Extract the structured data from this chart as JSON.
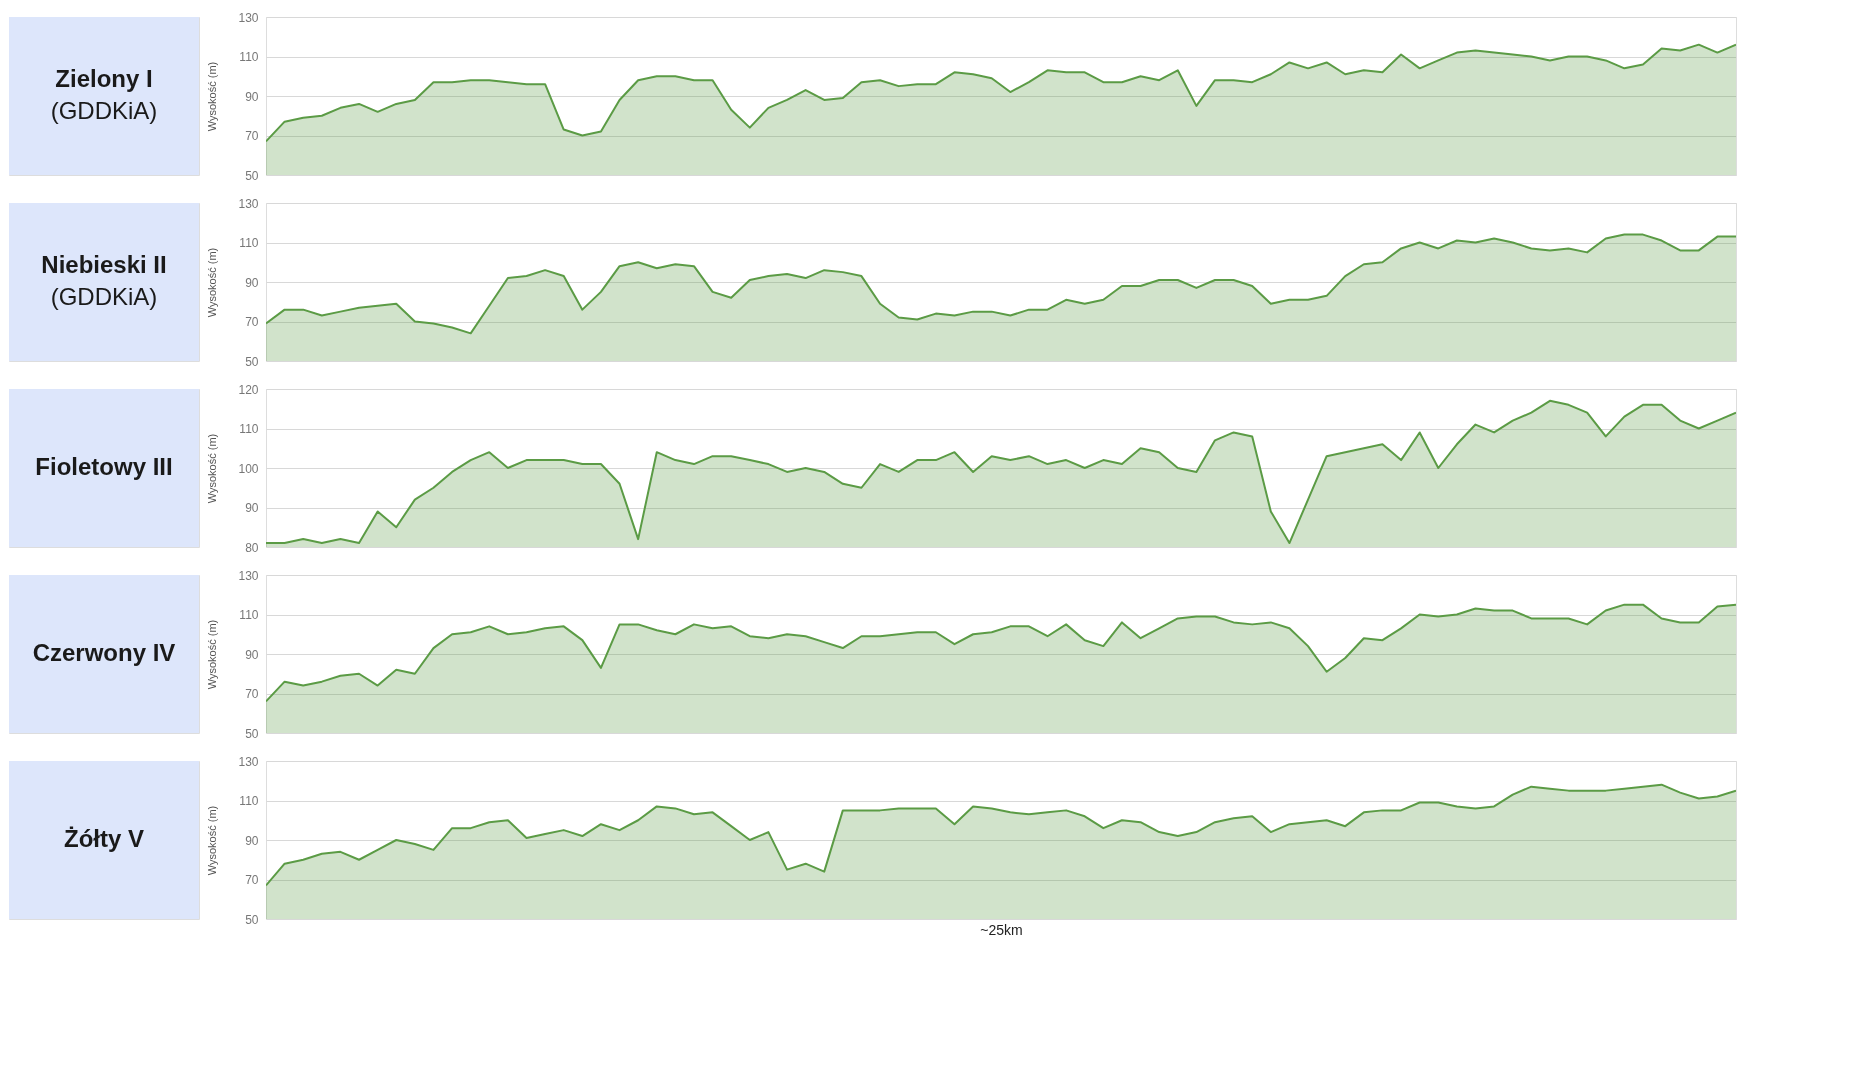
{
  "chart_data": [
    {
      "type": "area",
      "title": "Zielony I",
      "subtitle": "(GDDKiA)",
      "ylabel": "Wysokość (m)",
      "ylim": [
        50,
        130
      ],
      "yticks": [
        50,
        70,
        90,
        110,
        130
      ],
      "grid": "y",
      "tick_labels": "y",
      "categories": [
        null,
        null,
        null,
        null,
        null,
        null,
        null,
        null,
        null,
        null,
        null,
        null,
        null,
        null,
        null,
        null,
        null,
        null,
        null,
        null,
        null,
        null,
        null,
        null,
        null,
        null,
        null,
        null,
        null,
        null,
        null,
        null,
        null,
        null,
        null,
        null,
        null,
        null,
        null,
        null,
        null,
        null,
        null,
        null,
        null,
        null,
        null,
        null,
        null,
        null,
        null,
        null,
        null,
        null,
        null,
        null,
        null,
        null,
        null,
        null,
        null,
        null,
        null,
        null,
        null,
        null,
        null,
        null,
        null,
        null,
        null,
        null,
        null,
        null,
        null,
        null,
        null,
        null,
        null,
        null
      ],
      "series": [
        {
          "color": "#5b9b45",
          "values": [
            67,
            77,
            79,
            80,
            84,
            86,
            82,
            86,
            88,
            97,
            97,
            98,
            98,
            97,
            96,
            96,
            73,
            70,
            72,
            88,
            98,
            100,
            100,
            98,
            98,
            83,
            74,
            84,
            88,
            93,
            88,
            89,
            97,
            98,
            95,
            96,
            96,
            102,
            101,
            99,
            92,
            97,
            103,
            102,
            102,
            97,
            97,
            100,
            98,
            103,
            85,
            98,
            98,
            97,
            101,
            107,
            104,
            107,
            101,
            103,
            102,
            111,
            104,
            108,
            112,
            113,
            112,
            111,
            110,
            108,
            110,
            110,
            108,
            104,
            106,
            114,
            113,
            116,
            112,
            116
          ]
        }
      ]
    },
    {
      "type": "area",
      "title": "Niebieski II",
      "subtitle": "(GDDKiA)",
      "ylabel": "Wysokość (m)",
      "ylim": [
        50,
        130
      ],
      "yticks": [
        50,
        70,
        90,
        110,
        130
      ],
      "grid": "y",
      "tick_labels": "y",
      "categories": [
        null,
        null,
        null,
        null,
        null,
        null,
        null,
        null,
        null,
        null,
        null,
        null,
        null,
        null,
        null,
        null,
        null,
        null,
        null,
        null,
        null,
        null,
        null,
        null,
        null,
        null,
        null,
        null,
        null,
        null,
        null,
        null,
        null,
        null,
        null,
        null,
        null,
        null,
        null,
        null,
        null,
        null,
        null,
        null,
        null,
        null,
        null,
        null,
        null,
        null,
        null,
        null,
        null,
        null,
        null,
        null,
        null,
        null,
        null,
        null,
        null,
        null,
        null,
        null,
        null,
        null,
        null,
        null,
        null,
        null,
        null,
        null,
        null,
        null,
        null,
        null,
        null,
        null,
        null,
        null
      ],
      "series": [
        {
          "color": "#5b9b45",
          "values": [
            69,
            76,
            76,
            73,
            75,
            77,
            78,
            79,
            70,
            69,
            67,
            64,
            78,
            92,
            93,
            96,
            93,
            76,
            85,
            98,
            100,
            97,
            99,
            98,
            85,
            82,
            91,
            93,
            94,
            92,
            96,
            95,
            93,
            79,
            72,
            71,
            74,
            73,
            75,
            75,
            73,
            76,
            76,
            81,
            79,
            81,
            88,
            88,
            91,
            91,
            87,
            91,
            91,
            88,
            79,
            81,
            81,
            83,
            93,
            99,
            100,
            107,
            110,
            107,
            111,
            110,
            112,
            110,
            107,
            106,
            107,
            105,
            112,
            114,
            114,
            111,
            106,
            106,
            113,
            113
          ]
        }
      ]
    },
    {
      "type": "area",
      "title": "Fioletowy III",
      "ylabel": "Wysokość (m)",
      "ylim": [
        80,
        120
      ],
      "yticks": [
        80,
        90,
        100,
        110,
        120
      ],
      "grid": "y",
      "tick_labels": "y",
      "categories": [
        null,
        null,
        null,
        null,
        null,
        null,
        null,
        null,
        null,
        null,
        null,
        null,
        null,
        null,
        null,
        null,
        null,
        null,
        null,
        null,
        null,
        null,
        null,
        null,
        null,
        null,
        null,
        null,
        null,
        null,
        null,
        null,
        null,
        null,
        null,
        null,
        null,
        null,
        null,
        null,
        null,
        null,
        null,
        null,
        null,
        null,
        null,
        null,
        null,
        null,
        null,
        null,
        null,
        null,
        null,
        null,
        null,
        null,
        null,
        null,
        null,
        null,
        null,
        null,
        null,
        null,
        null,
        null,
        null,
        null,
        null,
        null,
        null,
        null,
        null,
        null,
        null,
        null,
        null,
        null
      ],
      "series": [
        {
          "color": "#5b9b45",
          "values": [
            81,
            81,
            82,
            81,
            82,
            81,
            89,
            85,
            92,
            95,
            99,
            102,
            104,
            100,
            102,
            102,
            102,
            101,
            101,
            96,
            82,
            104,
            102,
            101,
            103,
            103,
            102,
            101,
            99,
            100,
            99,
            96,
            95,
            101,
            99,
            102,
            102,
            104,
            99,
            103,
            102,
            103,
            101,
            102,
            100,
            102,
            101,
            105,
            104,
            100,
            99,
            107,
            109,
            108,
            89,
            81,
            92,
            103,
            104,
            105,
            106,
            102,
            109,
            100,
            106,
            111,
            109,
            112,
            114,
            117,
            116,
            114,
            108,
            113,
            116,
            116,
            112,
            110,
            112,
            114
          ]
        }
      ]
    },
    {
      "type": "area",
      "title": "Czerwony IV",
      "ylabel": "Wysokość (m)",
      "ylim": [
        50,
        130
      ],
      "yticks": [
        50,
        70,
        90,
        110,
        130
      ],
      "grid": "y",
      "tick_labels": "y",
      "categories": [
        null,
        null,
        null,
        null,
        null,
        null,
        null,
        null,
        null,
        null,
        null,
        null,
        null,
        null,
        null,
        null,
        null,
        null,
        null,
        null,
        null,
        null,
        null,
        null,
        null,
        null,
        null,
        null,
        null,
        null,
        null,
        null,
        null,
        null,
        null,
        null,
        null,
        null,
        null,
        null,
        null,
        null,
        null,
        null,
        null,
        null,
        null,
        null,
        null,
        null,
        null,
        null,
        null,
        null,
        null,
        null,
        null,
        null,
        null,
        null,
        null,
        null,
        null,
        null,
        null,
        null,
        null,
        null,
        null,
        null,
        null,
        null,
        null,
        null,
        null,
        null,
        null,
        null,
        null,
        null
      ],
      "series": [
        {
          "color": "#5b9b45",
          "values": [
            66,
            76,
            74,
            76,
            79,
            80,
            74,
            82,
            80,
            93,
            100,
            101,
            104,
            100,
            101,
            103,
            104,
            97,
            83,
            105,
            105,
            102,
            100,
            105,
            103,
            104,
            99,
            98,
            100,
            99,
            96,
            93,
            99,
            99,
            100,
            101,
            101,
            95,
            100,
            101,
            104,
            104,
            99,
            105,
            97,
            94,
            106,
            98,
            103,
            108,
            109,
            109,
            106,
            105,
            106,
            103,
            94,
            81,
            88,
            98,
            97,
            103,
            110,
            109,
            110,
            113,
            112,
            112,
            108,
            108,
            108,
            105,
            112,
            115,
            115,
            108,
            106,
            106,
            114,
            115
          ]
        }
      ]
    },
    {
      "type": "area",
      "title": "Żółty V",
      "ylabel": "Wysokość (m)",
      "xlabel": "~25km",
      "ylim": [
        50,
        130
      ],
      "yticks": [
        50,
        70,
        90,
        110,
        130
      ],
      "grid": "y",
      "tick_labels": "y",
      "categories": [
        null,
        null,
        null,
        null,
        null,
        null,
        null,
        null,
        null,
        null,
        null,
        null,
        null,
        null,
        null,
        null,
        null,
        null,
        null,
        null,
        null,
        null,
        null,
        null,
        null,
        null,
        null,
        null,
        null,
        null,
        null,
        null,
        null,
        null,
        null,
        null,
        null,
        null,
        null,
        null,
        null,
        null,
        null,
        null,
        null,
        null,
        null,
        null,
        null,
        null,
        null,
        null,
        null,
        null,
        null,
        null,
        null,
        null,
        null,
        null,
        null,
        null,
        null,
        null,
        null,
        null,
        null,
        null,
        null,
        null,
        null,
        null,
        null,
        null,
        null,
        null,
        null,
        null,
        null,
        null
      ],
      "series": [
        {
          "color": "#5b9b45",
          "values": [
            67,
            78,
            80,
            83,
            84,
            80,
            85,
            90,
            88,
            85,
            96,
            96,
            99,
            100,
            91,
            93,
            95,
            92,
            98,
            95,
            100,
            107,
            106,
            103,
            104,
            97,
            90,
            94,
            75,
            78,
            74,
            105,
            105,
            105,
            106,
            106,
            106,
            98,
            107,
            106,
            104,
            103,
            104,
            105,
            102,
            96,
            100,
            99,
            94,
            92,
            94,
            99,
            101,
            102,
            94,
            98,
            99,
            100,
            97,
            104,
            105,
            105,
            109,
            109,
            107,
            106,
            107,
            113,
            117,
            116,
            115,
            115,
            115,
            116,
            117,
            118,
            114,
            111,
            112,
            115
          ]
        }
      ]
    }
  ]
}
